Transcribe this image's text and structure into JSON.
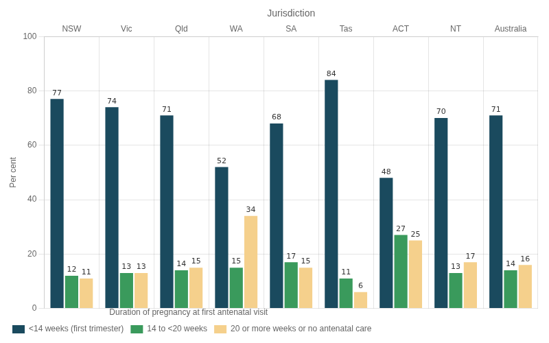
{
  "chart_data": {
    "type": "bar",
    "x_label": "Jurisdiction",
    "y_label": "Per cent",
    "categories": [
      "NSW",
      "Vic",
      "Qld",
      "WA",
      "SA",
      "Tas",
      "ACT",
      "NT",
      "Australia"
    ],
    "series": [
      {
        "name": "<14 weeks (first trimester)",
        "color": "#1a4a5e",
        "values": [
          77,
          74,
          71,
          52,
          68,
          84,
          48,
          70,
          71
        ]
      },
      {
        "name": "14 to <20 weeks",
        "color": "#3a9a5c",
        "values": [
          12,
          13,
          14,
          15,
          17,
          11,
          27,
          13,
          14
        ]
      },
      {
        "name": "20 or more weeks or no antenatal care",
        "color": "#f5d08c",
        "values": [
          11,
          13,
          15,
          34,
          15,
          6,
          25,
          17,
          16
        ]
      }
    ],
    "legend_title": "Duration of pregnancy at first antenatal visit",
    "legend": "bottom",
    "ylim": [
      0,
      100
    ],
    "yticks": [
      0,
      20,
      40,
      60,
      80,
      100
    ],
    "grid": true,
    "data_labels": true
  }
}
